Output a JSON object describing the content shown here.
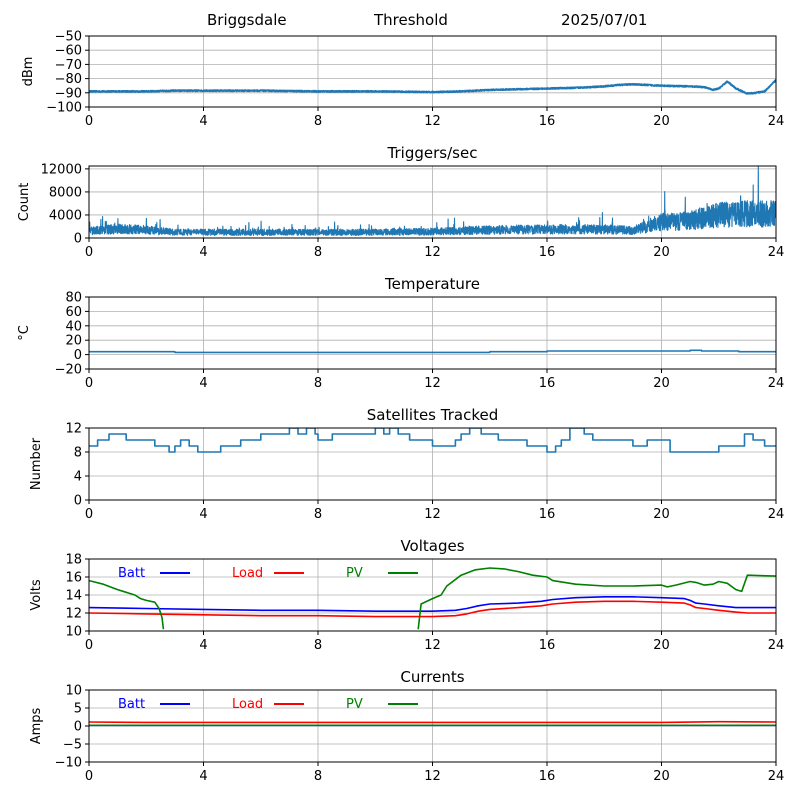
{
  "header": {
    "station": "Briggsdale",
    "label": "Threshold",
    "date": "2025/07/01"
  },
  "colors": {
    "series_default": "#1f77b4",
    "batt": "#0000ff",
    "load": "#ff0000",
    "pv": "#008000",
    "grid": "#b0b0b0"
  },
  "chart_data": [
    {
      "type": "line",
      "title": "",
      "xlabel": "",
      "ylabel": "dBm",
      "xlim": [
        0,
        24
      ],
      "ylim": [
        -100,
        -50
      ],
      "xticks": [
        0,
        4,
        8,
        12,
        16,
        20,
        24
      ],
      "yticks": [
        -100,
        -90,
        -80,
        -70,
        -60,
        -50
      ],
      "grid": true,
      "series": [
        {
          "color": "#1f77b4",
          "noise": 0.5,
          "x": [
            0,
            1,
            2,
            3,
            4,
            6,
            8,
            10,
            12,
            13,
            14,
            15,
            16,
            17,
            18,
            18.5,
            19,
            19.5,
            20,
            21,
            21.5,
            21.8,
            22,
            22.3,
            22.6,
            23,
            23.3,
            23.6,
            23.8,
            24
          ],
          "y": [
            -89,
            -89,
            -89,
            -88.5,
            -88.5,
            -88.5,
            -89,
            -89,
            -89.5,
            -89,
            -88,
            -87.5,
            -87,
            -86.5,
            -85.5,
            -84.5,
            -84,
            -84.5,
            -85,
            -85.5,
            -86,
            -88,
            -87,
            -82,
            -87,
            -90.5,
            -90,
            -89,
            -85,
            -81
          ]
        }
      ]
    },
    {
      "type": "line",
      "title": "Triggers/sec",
      "xlabel": "",
      "ylabel": "Count",
      "xlim": [
        0,
        24
      ],
      "ylim": [
        0,
        12500
      ],
      "xticks": [
        0,
        4,
        8,
        12,
        16,
        20,
        24
      ],
      "yticks": [
        0,
        4000,
        8000,
        12000
      ],
      "grid": true,
      "series": [
        {
          "color": "#1f77b4",
          "noise": 0.55,
          "x": [
            0,
            1,
            2,
            3,
            4,
            6,
            8,
            10,
            12,
            14,
            16,
            18,
            19,
            19.5,
            20,
            21,
            22,
            23,
            24
          ],
          "y": [
            1200,
            1600,
            1400,
            1000,
            1000,
            1000,
            1000,
            1000,
            1100,
            1400,
            1500,
            1500,
            1300,
            2000,
            2800,
            3000,
            4000,
            4200,
            4200
          ]
        }
      ]
    },
    {
      "type": "line",
      "title": "Temperature",
      "xlabel": "",
      "ylabel": "°C",
      "xlim": [
        0,
        24
      ],
      "ylim": [
        -20,
        80
      ],
      "xticks": [
        0,
        4,
        8,
        12,
        16,
        20,
        24
      ],
      "yticks": [
        -20,
        0,
        20,
        40,
        60,
        80
      ],
      "grid": true,
      "series": [
        {
          "color": "#1f77b4",
          "step": true,
          "x": [
            0,
            3,
            14,
            16,
            21,
            21.4,
            22.7,
            24
          ],
          "y": [
            4,
            3,
            4,
            5,
            6,
            5,
            4,
            4
          ]
        }
      ]
    },
    {
      "type": "line",
      "title": "Satellites Tracked",
      "xlabel": "",
      "ylabel": "Number",
      "xlim": [
        0,
        24
      ],
      "ylim": [
        0,
        12
      ],
      "xticks": [
        0,
        4,
        8,
        12,
        16,
        20,
        24
      ],
      "yticks": [
        0,
        4,
        8,
        12
      ],
      "grid": true,
      "series": [
        {
          "color": "#1f77b4",
          "step": true,
          "x": [
            0,
            0.3,
            0.6,
            0.7,
            1.3,
            1.5,
            2.3,
            2.5,
            2.8,
            3,
            3.2,
            3.5,
            3.8,
            4.3,
            4.6,
            5,
            5.3,
            6,
            6.5,
            7,
            7.3,
            7.6,
            7.9,
            8,
            8.5,
            9,
            10,
            10.3,
            10.5,
            10.8,
            11.2,
            11.8,
            12,
            12.3,
            12.8,
            13,
            13.3,
            13.7,
            14.3,
            15,
            15.3,
            15.8,
            16,
            16.3,
            16.5,
            16.8,
            17,
            17.3,
            17.6,
            18,
            18.6,
            19,
            19.5,
            20,
            20.3,
            21.3,
            22,
            22.6,
            22.9,
            23.2,
            23.6,
            24
          ],
          "y": [
            9,
            10,
            10,
            11,
            10,
            10,
            9,
            9,
            8,
            9,
            10,
            9,
            8,
            8,
            9,
            9,
            10,
            11,
            11,
            12,
            11,
            12,
            11,
            10,
            11,
            11,
            12,
            11,
            12,
            11,
            10,
            10,
            9,
            9,
            10,
            11,
            12,
            11,
            10,
            10,
            9,
            9,
            8,
            9,
            10,
            12,
            12,
            11,
            10,
            10,
            10,
            9,
            10,
            10,
            8,
            8,
            9,
            9,
            11,
            10,
            9,
            9
          ]
        }
      ]
    },
    {
      "type": "line",
      "title": "Voltages",
      "xlabel": "",
      "ylabel": "Volts",
      "xlim": [
        0,
        24
      ],
      "ylim": [
        10,
        18
      ],
      "xticks": [
        0,
        4,
        8,
        12,
        16,
        20,
        24
      ],
      "yticks": [
        10,
        12,
        14,
        16,
        18
      ],
      "grid": true,
      "legend_position": "top-left",
      "series": [
        {
          "name": "Batt",
          "color": "#0000ff",
          "x": [
            0,
            2,
            4,
            6,
            8,
            10,
            12,
            12.8,
            13.2,
            13.6,
            14,
            15,
            15.8,
            16.2,
            17,
            18,
            19,
            20,
            20.8,
            21,
            21.2,
            21.5,
            22,
            22.6,
            23,
            24
          ],
          "y": [
            12.6,
            12.5,
            12.4,
            12.3,
            12.3,
            12.2,
            12.2,
            12.3,
            12.5,
            12.8,
            13.0,
            13.1,
            13.3,
            13.5,
            13.7,
            13.8,
            13.8,
            13.7,
            13.6,
            13.4,
            13.1,
            13.0,
            12.8,
            12.6,
            12.6,
            12.6
          ]
        },
        {
          "name": "Load",
          "color": "#ff0000",
          "x": [
            0,
            2,
            4,
            6,
            8,
            10,
            12,
            12.8,
            13.2,
            13.6,
            14,
            15,
            15.8,
            16.2,
            17,
            18,
            19,
            20,
            20.8,
            21,
            21.2,
            21.5,
            22,
            22.6,
            23,
            24
          ],
          "y": [
            12.0,
            11.9,
            11.8,
            11.7,
            11.7,
            11.6,
            11.6,
            11.7,
            11.9,
            12.2,
            12.4,
            12.6,
            12.8,
            13.0,
            13.2,
            13.3,
            13.3,
            13.2,
            13.1,
            12.9,
            12.6,
            12.5,
            12.3,
            12.1,
            12.0,
            12.0
          ]
        },
        {
          "name": "PV",
          "color": "#008000",
          "gap": [
            2.6,
            11.5
          ],
          "x": [
            0,
            0.5,
            1,
            1.3,
            1.6,
            1.8,
            2,
            2.3,
            2.45,
            2.55,
            2.6,
            11.5,
            11.6,
            12,
            12.3,
            12.5,
            13,
            13.5,
            14,
            14.5,
            15,
            15.5,
            16,
            16.2,
            17,
            18,
            19,
            20,
            20.2,
            20.5,
            21,
            21.2,
            21.5,
            21.8,
            22,
            22.3,
            22.6,
            22.8,
            23,
            24
          ],
          "y": [
            15.6,
            15.2,
            14.6,
            14.3,
            14.0,
            13.6,
            13.4,
            13.2,
            12.5,
            11.5,
            10.2,
            10.2,
            13.0,
            13.6,
            14.0,
            15.0,
            16.2,
            16.8,
            17.0,
            16.9,
            16.6,
            16.2,
            16.0,
            15.6,
            15.2,
            15.0,
            15.0,
            15.1,
            14.9,
            15.1,
            15.5,
            15.4,
            15.1,
            15.2,
            15.5,
            15.3,
            14.6,
            14.4,
            16.2,
            16.1
          ]
        }
      ]
    },
    {
      "type": "line",
      "title": "Currents",
      "xlabel": "",
      "ylabel": "Amps",
      "xlim": [
        0,
        24
      ],
      "ylim": [
        -10,
        10
      ],
      "xticks": [
        0,
        4,
        8,
        12,
        16,
        20,
        24
      ],
      "yticks": [
        -10,
        -5,
        0,
        5,
        10
      ],
      "grid": true,
      "legend_position": "top-left",
      "series": [
        {
          "name": "Batt",
          "color": "#0000ff",
          "x": [
            0,
            24
          ],
          "y": [
            0.2,
            0.2
          ]
        },
        {
          "name": "Load",
          "color": "#ff0000",
          "x": [
            0,
            2,
            8,
            16,
            20,
            22,
            24
          ],
          "y": [
            1.1,
            1.0,
            1.0,
            1.0,
            1.0,
            1.2,
            1.1
          ]
        },
        {
          "name": "PV",
          "color": "#008000",
          "x": [
            0,
            24
          ],
          "y": [
            0.2,
            0.2
          ]
        }
      ]
    }
  ]
}
